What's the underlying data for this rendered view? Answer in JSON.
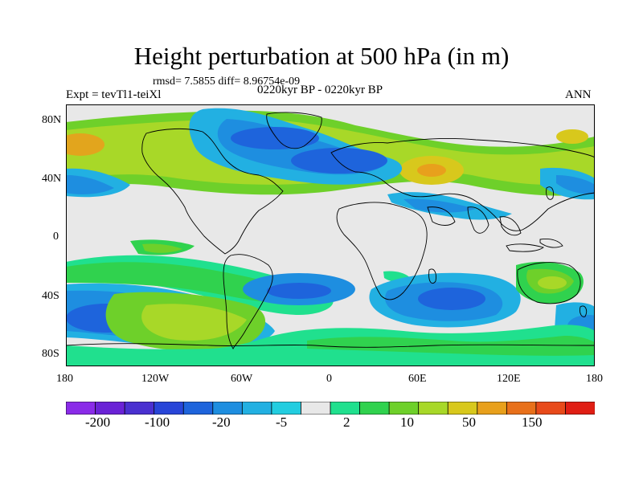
{
  "title": "Height perturbation at 500 hPa (in m)",
  "stats": "rmsd= 7.5855 diff= 8.96754e-09",
  "experiment": "Expt = tevTl1-teiXl",
  "period": "0220kyr BP - 0220kyr BP",
  "season": "ANN",
  "lat_labels": [
    "80N",
    "40N",
    "0",
    "40S",
    "80S"
  ],
  "lon_labels": [
    "180",
    "120W",
    "60W",
    "0",
    "60E",
    "120E",
    "180"
  ],
  "colorbar": {
    "labels": [
      "-200",
      "-100",
      "-20",
      "-5",
      "2",
      "10",
      "50",
      "150"
    ],
    "colors": [
      "#8a2be8",
      "#6a22d6",
      "#4a30d0",
      "#2845d8",
      "#1e64dc",
      "#1e8ee0",
      "#22b0e2",
      "#22cde0",
      "#e8e8e8",
      "#20e08e",
      "#30d24e",
      "#6ed02a",
      "#a8d828",
      "#d8c81c",
      "#e8a01c",
      "#e8701a",
      "#e84a1a",
      "#e01e14"
    ]
  }
}
